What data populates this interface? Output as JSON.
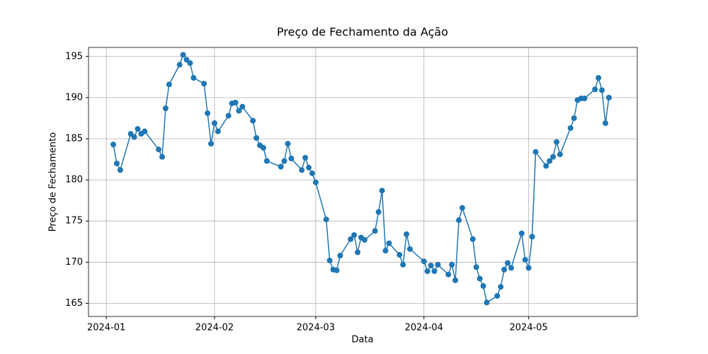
{
  "chart_data": {
    "type": "line",
    "title": "Preço de Fechamento da Ação",
    "x_label": "Data",
    "y_label": "Preço de Fechamento",
    "color": "#1f77b4",
    "grid": true,
    "xlim": [
      -5.1,
      152.1
    ],
    "ylim": [
      163.4,
      196.1
    ],
    "xticks": [
      {
        "value": 0,
        "label": "2024-01"
      },
      {
        "value": 31,
        "label": "2024-02"
      },
      {
        "value": 60,
        "label": "2024-03"
      },
      {
        "value": 91,
        "label": "2024-04"
      },
      {
        "value": 121,
        "label": "2024-05"
      }
    ],
    "yticks": [
      165,
      170,
      175,
      180,
      185,
      190,
      195
    ],
    "x": [
      2,
      3,
      4,
      7,
      8,
      9,
      10,
      11,
      15,
      16,
      17,
      18,
      21,
      22,
      23,
      24,
      25,
      28,
      29,
      30,
      31,
      32,
      35,
      36,
      37,
      38,
      39,
      42,
      43,
      44,
      45,
      46,
      50,
      51,
      52,
      53,
      56,
      57,
      58,
      59,
      60,
      63,
      64,
      65,
      66,
      67,
      70,
      71,
      72,
      73,
      74,
      77,
      78,
      79,
      80,
      81,
      84,
      85,
      86,
      87,
      91,
      92,
      93,
      94,
      95,
      98,
      99,
      100,
      101,
      102,
      105,
      106,
      107,
      108,
      109,
      112,
      113,
      114,
      115,
      116,
      119,
      120,
      121,
      122,
      123,
      126,
      127,
      128,
      129,
      130,
      133,
      134,
      135,
      136,
      137,
      140,
      141,
      142,
      143,
      144
    ],
    "values": [
      184.3,
      182.0,
      181.2,
      185.6,
      185.2,
      186.2,
      185.6,
      185.9,
      183.7,
      182.8,
      188.7,
      191.6,
      194.0,
      195.2,
      194.6,
      194.2,
      192.4,
      191.7,
      188.1,
      184.4,
      186.9,
      185.9,
      187.8,
      189.3,
      189.4,
      188.4,
      188.9,
      187.2,
      185.1,
      184.2,
      183.9,
      182.3,
      181.6,
      182.3,
      184.4,
      182.6,
      181.2,
      182.7,
      181.5,
      180.8,
      179.7,
      175.2,
      170.2,
      169.1,
      169.0,
      170.8,
      172.8,
      173.3,
      171.2,
      173.0,
      172.7,
      173.8,
      176.1,
      178.7,
      171.4,
      172.3,
      170.9,
      169.7,
      173.4,
      171.6,
      170.1,
      168.9,
      169.6,
      168.9,
      169.7,
      168.5,
      169.7,
      167.8,
      175.1,
      176.6,
      172.8,
      169.4,
      168.0,
      167.1,
      165.1,
      165.9,
      167.0,
      169.1,
      169.9,
      169.3,
      173.5,
      170.3,
      169.3,
      173.1,
      183.4,
      181.7,
      182.3,
      182.8,
      184.6,
      183.1,
      186.3,
      187.5,
      189.7,
      189.9,
      189.9,
      191.0,
      192.4,
      190.9,
      186.9,
      190.0
    ]
  }
}
